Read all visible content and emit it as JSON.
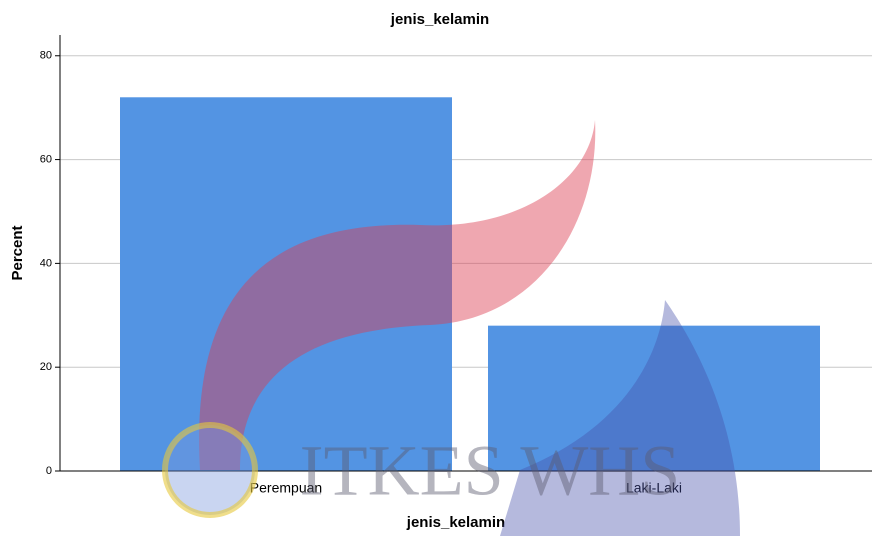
{
  "chart_data": {
    "type": "bar",
    "title": "jenis_kelamin",
    "xlabel": "jenis_kelamin",
    "ylabel": "Percent",
    "categories": [
      "Perempuan",
      "Laki-Laki"
    ],
    "values": [
      72,
      28
    ],
    "color": "#5394e3",
    "ylim": [
      0,
      84
    ],
    "yticks": [
      0,
      20,
      40,
      60,
      80
    ],
    "grid": true,
    "watermark": "ITKES WHS"
  }
}
